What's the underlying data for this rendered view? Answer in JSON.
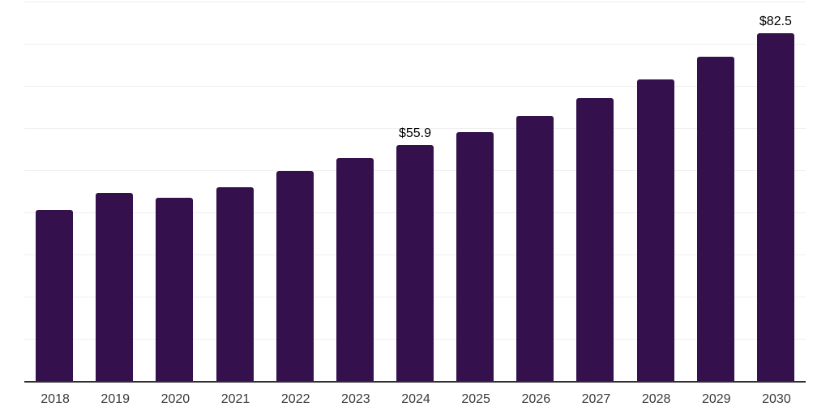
{
  "chart_data": {
    "type": "bar",
    "title": "",
    "xlabel": "",
    "ylabel": "",
    "categories": [
      "2018",
      "2019",
      "2020",
      "2021",
      "2022",
      "2023",
      "2024",
      "2025",
      "2026",
      "2027",
      "2028",
      "2029",
      "2030"
    ],
    "values": [
      40.6,
      44.7,
      43.4,
      46.0,
      49.9,
      52.9,
      55.9,
      59.1,
      62.9,
      67.1,
      71.5,
      76.9,
      82.5
    ],
    "data_labels": [
      {
        "category": "2024",
        "text": "$55.9"
      },
      {
        "category": "2030",
        "text": "$82.5"
      }
    ],
    "ylim": [
      0,
      90
    ],
    "grid": "horizontal",
    "gridline_step": 10,
    "legend": "none",
    "colors": {
      "bar": "#34114d",
      "axis_line": "#2f2f2f",
      "gridline": "#efefef",
      "tick_label": "#3a3a3a",
      "data_label": "#000000",
      "background": "#ffffff"
    }
  }
}
